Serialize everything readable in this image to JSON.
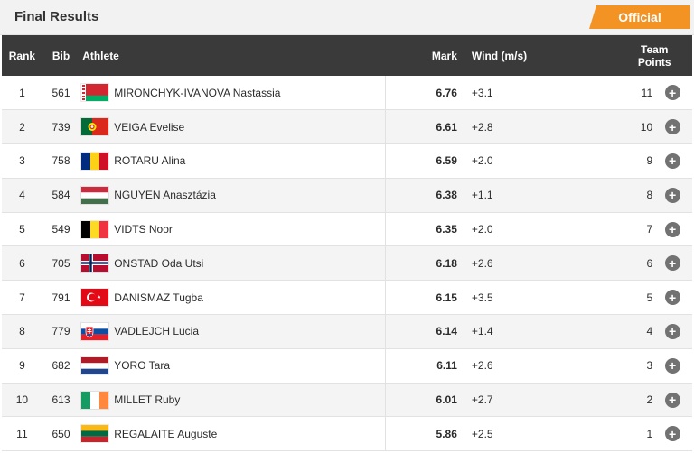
{
  "header": {
    "title": "Final Results",
    "status_badge": "Official",
    "badge_color": "#f39323"
  },
  "table": {
    "columns": {
      "rank": "Rank",
      "bib": "Bib",
      "athlete": "Athlete",
      "mark": "Mark",
      "wind": "Wind (m/s)",
      "team_points_line1": "Team",
      "team_points_line2": "Points"
    },
    "rows": [
      {
        "rank": "1",
        "bib": "561",
        "flag": "BLR",
        "name": "MIRONCHYK-IVANOVA Nastassia",
        "mark": "6.76",
        "wind": "+3.1",
        "points": "11",
        "action_icon": "plus-icon"
      },
      {
        "rank": "2",
        "bib": "739",
        "flag": "POR",
        "name": "VEIGA Evelise",
        "mark": "6.61",
        "wind": "+2.8",
        "points": "10",
        "action_icon": "plus-icon"
      },
      {
        "rank": "3",
        "bib": "758",
        "flag": "ROU",
        "name": "ROTARU Alina",
        "mark": "6.59",
        "wind": "+2.0",
        "points": "9",
        "action_icon": "plus-icon"
      },
      {
        "rank": "4",
        "bib": "584",
        "flag": "HUN",
        "name": "NGUYEN Anasztázia",
        "mark": "6.38",
        "wind": "+1.1",
        "points": "8",
        "action_icon": "plus-icon"
      },
      {
        "rank": "5",
        "bib": "549",
        "flag": "BEL",
        "name": "VIDTS Noor",
        "mark": "6.35",
        "wind": "+2.0",
        "points": "7",
        "action_icon": "plus-icon"
      },
      {
        "rank": "6",
        "bib": "705",
        "flag": "NOR",
        "name": "ONSTAD Oda Utsi",
        "mark": "6.18",
        "wind": "+2.6",
        "points": "6",
        "action_icon": "plus-icon"
      },
      {
        "rank": "7",
        "bib": "791",
        "flag": "TUR",
        "name": "DANISMAZ Tugba",
        "mark": "6.15",
        "wind": "+3.5",
        "points": "5",
        "action_icon": "plus-icon"
      },
      {
        "rank": "8",
        "bib": "779",
        "flag": "SVK",
        "name": "VADLEJCH Lucia",
        "mark": "6.14",
        "wind": "+1.4",
        "points": "4",
        "action_icon": "plus-icon"
      },
      {
        "rank": "9",
        "bib": "682",
        "flag": "NED",
        "name": "YORO Tara",
        "mark": "6.11",
        "wind": "+2.6",
        "points": "3",
        "action_icon": "plus-icon"
      },
      {
        "rank": "10",
        "bib": "613",
        "flag": "IRL",
        "name": "MILLET Ruby",
        "mark": "6.01",
        "wind": "+2.7",
        "points": "2",
        "action_icon": "plus-icon"
      },
      {
        "rank": "11",
        "bib": "650",
        "flag": "LTU",
        "name": "REGALAITE Auguste",
        "mark": "5.86",
        "wind": "+2.5",
        "points": "1",
        "action_icon": "plus-icon"
      }
    ]
  }
}
